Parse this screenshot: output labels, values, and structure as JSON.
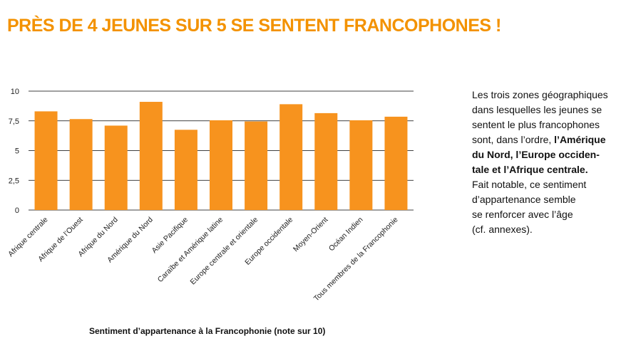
{
  "title": "PRÈS DE 4 JEUNES SUR 5 SE SENTENT FRANCOPHONES !",
  "side_text": {
    "line1": "Les trois zones géographiques",
    "line2": "dans lesquelles les jeunes se",
    "line3": "sentent le plus francophones",
    "line4_plain": "sont, dans l’ordre, ",
    "line4_bold": "l’Amérique",
    "line5": "du Nord, l’Europe occiden-",
    "line6": "tale et l’Afrique centrale.",
    "line7": "Fait notable, ce sentiment",
    "line8": "d’appartenance semble",
    "line9": "se renforcer avec l’âge",
    "line10": "(cf. annexes)."
  },
  "colors": {
    "accent": "#f39200",
    "bar": "#f7931e",
    "gridline": "#000000"
  },
  "chart_data": {
    "type": "bar",
    "title": "",
    "xlabel": "Sentiment d’appartenance à la Francophonie (note sur 10)",
    "ylabel": "",
    "ylim": [
      0,
      10
    ],
    "yticks": [
      0,
      2.5,
      5,
      7.5,
      10
    ],
    "ytick_labels": [
      "0",
      "2,5",
      "5",
      "7,5",
      "10"
    ],
    "grid": true,
    "categories": [
      "Afrique centrale",
      "Afrique de l’Ouest",
      "Afrique du Nord",
      "Amérique du Nord",
      "Asie Pacifique",
      "Caraïbe et Amérique latine",
      "Europe centrale et orientale",
      "Europe occidentale",
      "Moyen-Orient",
      "Océan Indien",
      "Tous membres de la Francophonie"
    ],
    "values": [
      8.3,
      7.65,
      7.1,
      9.1,
      6.75,
      7.55,
      7.45,
      8.9,
      8.15,
      7.55,
      7.85
    ]
  }
}
